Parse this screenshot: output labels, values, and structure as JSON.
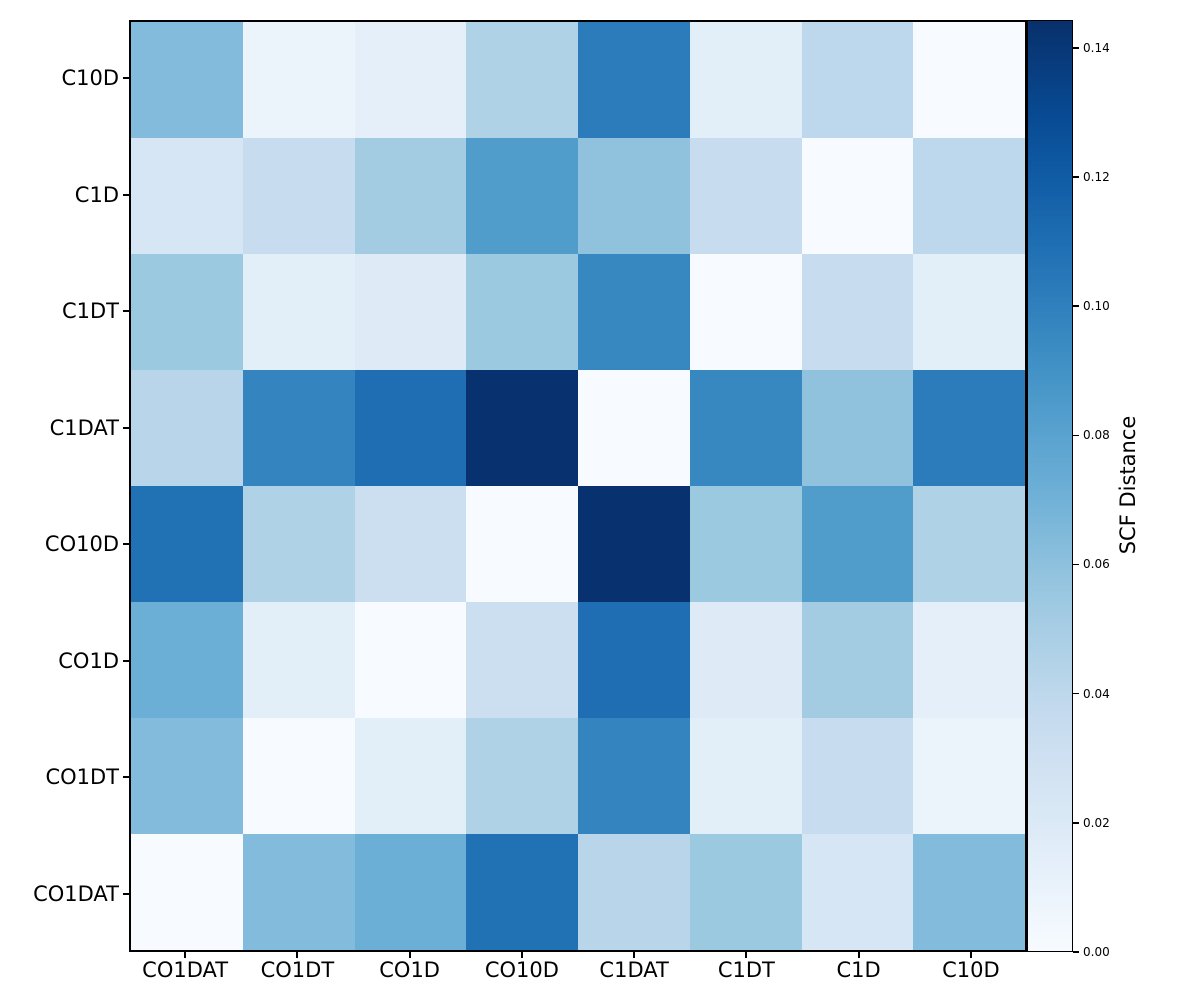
{
  "chart_data": {
    "type": "heatmap",
    "title": "",
    "xlabel": "",
    "ylabel": "",
    "x_labels": [
      "CO1DAT",
      "CO1DT",
      "CO1D",
      "CO10D",
      "C1DAT",
      "C1DT",
      "C1D",
      "C10D"
    ],
    "y_labels": [
      "C10D",
      "C1D",
      "C1DT",
      "C1DAT",
      "CO10D",
      "CO1D",
      "CO1DT",
      "CO1DAT"
    ],
    "matrix": [
      [
        0.064,
        0.008,
        0.014,
        0.046,
        0.102,
        0.015,
        0.04,
        0.0
      ],
      [
        0.024,
        0.035,
        0.052,
        0.084,
        0.059,
        0.035,
        0.0,
        0.04
      ],
      [
        0.055,
        0.015,
        0.018,
        0.055,
        0.096,
        0.0,
        0.035,
        0.015
      ],
      [
        0.042,
        0.098,
        0.11,
        0.143,
        0.0,
        0.096,
        0.059,
        0.102
      ],
      [
        0.108,
        0.046,
        0.032,
        0.0,
        0.143,
        0.055,
        0.084,
        0.046
      ],
      [
        0.072,
        0.015,
        0.0,
        0.032,
        0.11,
        0.018,
        0.052,
        0.014
      ],
      [
        0.064,
        0.0,
        0.015,
        0.046,
        0.098,
        0.015,
        0.035,
        0.008
      ],
      [
        0.0,
        0.064,
        0.072,
        0.108,
        0.042,
        0.055,
        0.024,
        0.064
      ]
    ],
    "vmin": 0.0,
    "vmax": 0.1443,
    "grid": false,
    "colormap": "Blues",
    "colorbar": {
      "label": "SCF Distance",
      "tick_values": [
        0.0,
        0.02,
        0.04,
        0.06,
        0.08,
        0.1,
        0.12,
        0.14
      ],
      "tick_labels": [
        "0.00",
        "0.02",
        "0.04",
        "0.06",
        "0.08",
        "0.10",
        "0.12",
        "0.14"
      ],
      "position": "right"
    },
    "colors": {
      "background": "#ffffff",
      "spine": "#000000",
      "text": "#000000",
      "blues_anchors": [
        [
          247,
          251,
          255
        ],
        [
          222,
          235,
          247
        ],
        [
          198,
          219,
          239
        ],
        [
          158,
          202,
          225
        ],
        [
          107,
          174,
          214
        ],
        [
          66,
          146,
          198
        ],
        [
          33,
          113,
          181
        ],
        [
          8,
          81,
          156
        ],
        [
          8,
          48,
          107
        ]
      ]
    }
  }
}
